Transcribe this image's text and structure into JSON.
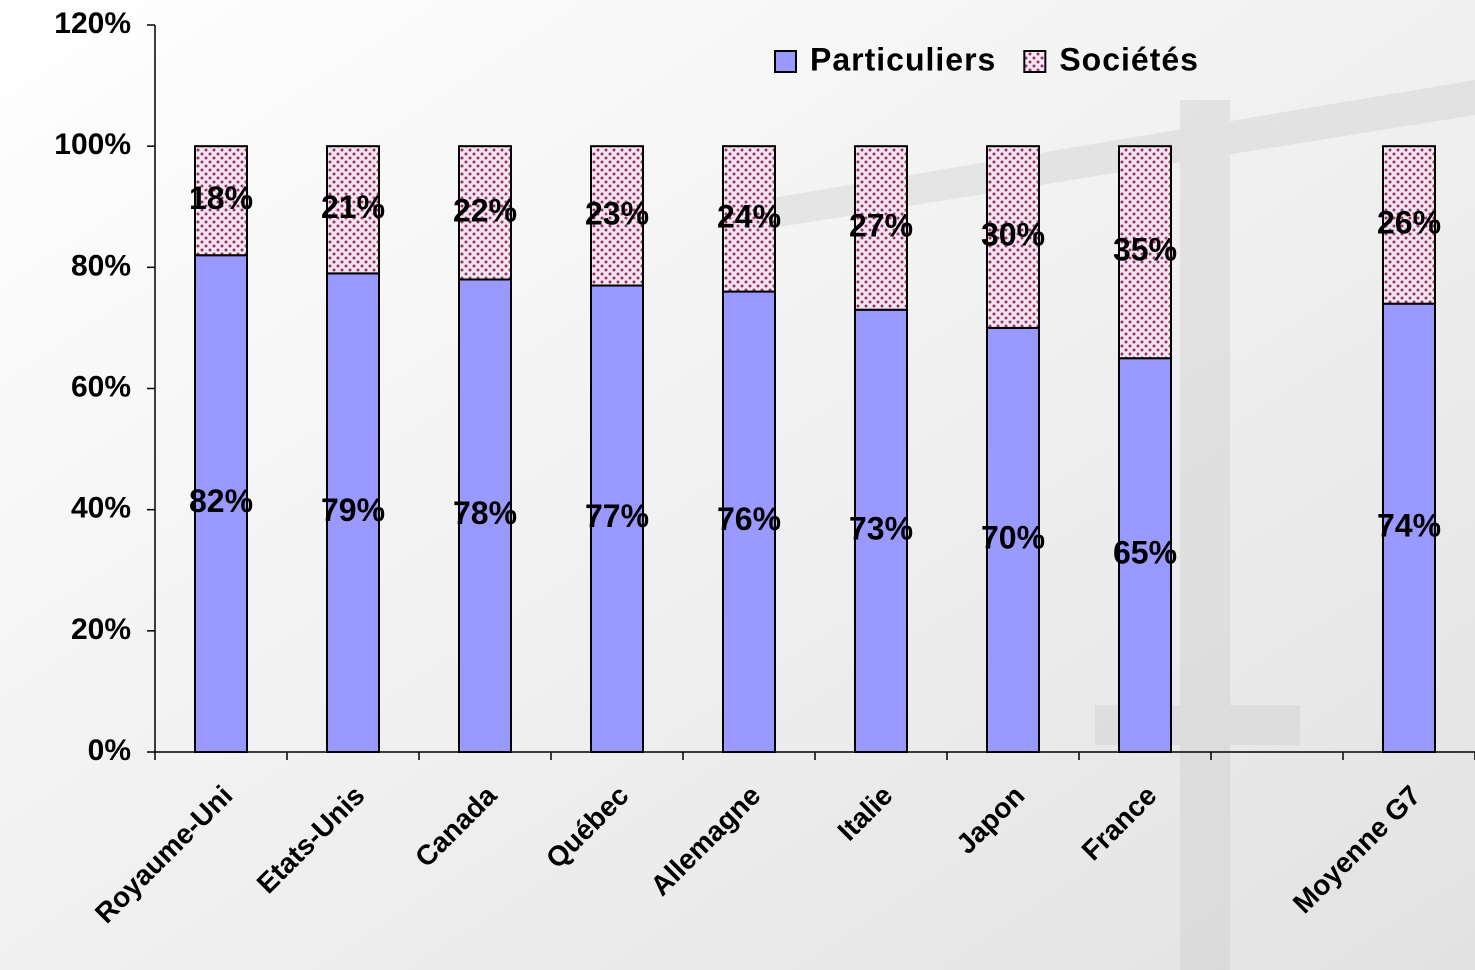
{
  "chart_data": {
    "type": "stacked-bar",
    "categories": [
      "Royaume-Uni",
      "Etats-Unis",
      "Canada",
      "Québec",
      "Allemagne",
      "Italie",
      "Japon",
      "France",
      null,
      "Moyenne G7"
    ],
    "series": [
      {
        "name": "Particuliers",
        "color": "#9999ff",
        "values": [
          82,
          79,
          78,
          77,
          76,
          73,
          70,
          65,
          null,
          74
        ],
        "value_labels": [
          "82%",
          "79%",
          "78%",
          "77%",
          "76%",
          "73%",
          "70%",
          "65%",
          null,
          "74%"
        ]
      },
      {
        "name": "Sociétés",
        "color": "#993366",
        "pattern": "dots",
        "values": [
          18,
          21,
          22,
          23,
          24,
          27,
          30,
          35,
          null,
          26
        ],
        "value_labels": [
          "18%",
          "21%",
          "22%",
          "23%",
          "24%",
          "27%",
          "30%",
          "35%",
          null,
          "26%"
        ]
      }
    ],
    "ylim": [
      0,
      120
    ],
    "yticks": [
      {
        "value": 0,
        "label": "0%"
      },
      {
        "value": 20,
        "label": "20%"
      },
      {
        "value": 40,
        "label": "40%"
      },
      {
        "value": 60,
        "label": "60%"
      },
      {
        "value": 80,
        "label": "80%"
      },
      {
        "value": 100,
        "label": "100%"
      },
      {
        "value": 120,
        "label": "120%"
      }
    ],
    "legend": "top-right"
  }
}
